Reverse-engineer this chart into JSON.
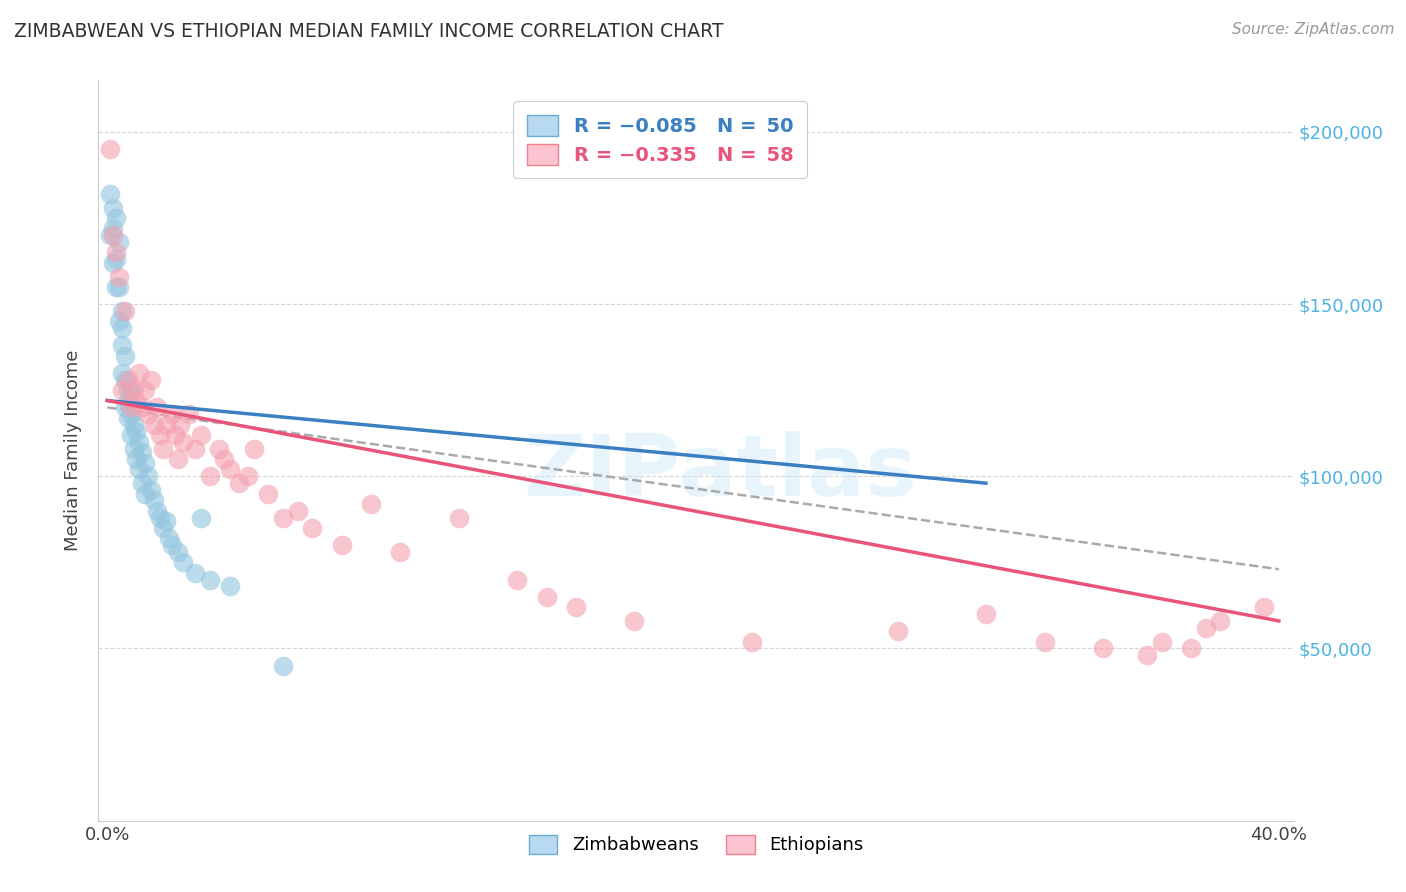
{
  "title": "ZIMBABWEAN VS ETHIOPIAN MEDIAN FAMILY INCOME CORRELATION CHART",
  "source": "Source: ZipAtlas.com",
  "ylabel": "Median Family Income",
  "y_ticks": [
    50000,
    100000,
    150000,
    200000
  ],
  "y_tick_labels": [
    "$50,000",
    "$100,000",
    "$150,000",
    "$200,000"
  ],
  "y_min": 0,
  "y_max": 215000,
  "x_min": -0.003,
  "x_max": 0.405,
  "zim_color": "#92c5de",
  "eth_color": "#f4a0b0",
  "trend_zim_color": "#3a7fc1",
  "trend_eth_color": "#e8547a",
  "trend_ci_color": "#aaaaaa",
  "background_color": "#ffffff",
  "grid_color": "#cccccc",
  "zim_x": [
    0.001,
    0.001,
    0.002,
    0.002,
    0.002,
    0.003,
    0.003,
    0.003,
    0.004,
    0.004,
    0.004,
    0.005,
    0.005,
    0.005,
    0.005,
    0.006,
    0.006,
    0.006,
    0.007,
    0.007,
    0.007,
    0.008,
    0.008,
    0.008,
    0.009,
    0.009,
    0.01,
    0.01,
    0.011,
    0.011,
    0.012,
    0.012,
    0.013,
    0.013,
    0.014,
    0.015,
    0.016,
    0.017,
    0.018,
    0.019,
    0.02,
    0.021,
    0.022,
    0.024,
    0.026,
    0.03,
    0.032,
    0.035,
    0.042,
    0.06
  ],
  "zim_y": [
    170000,
    182000,
    178000,
    162000,
    172000,
    175000,
    163000,
    155000,
    168000,
    145000,
    155000,
    138000,
    148000,
    130000,
    143000,
    128000,
    120000,
    135000,
    125000,
    117000,
    122000,
    118000,
    112000,
    125000,
    115000,
    108000,
    113000,
    105000,
    110000,
    102000,
    107000,
    98000,
    104000,
    95000,
    100000,
    96000,
    93000,
    90000,
    88000,
    85000,
    87000,
    82000,
    80000,
    78000,
    75000,
    72000,
    88000,
    70000,
    68000,
    45000
  ],
  "eth_x": [
    0.001,
    0.002,
    0.003,
    0.004,
    0.005,
    0.006,
    0.007,
    0.008,
    0.009,
    0.01,
    0.011,
    0.012,
    0.013,
    0.014,
    0.015,
    0.016,
    0.017,
    0.018,
    0.019,
    0.02,
    0.022,
    0.023,
    0.024,
    0.025,
    0.026,
    0.028,
    0.03,
    0.032,
    0.035,
    0.038,
    0.04,
    0.042,
    0.045,
    0.048,
    0.05,
    0.055,
    0.06,
    0.065,
    0.07,
    0.08,
    0.09,
    0.1,
    0.12,
    0.14,
    0.15,
    0.16,
    0.18,
    0.22,
    0.27,
    0.3,
    0.32,
    0.34,
    0.355,
    0.36,
    0.37,
    0.375,
    0.38,
    0.395
  ],
  "eth_y": [
    195000,
    170000,
    165000,
    158000,
    125000,
    148000,
    128000,
    120000,
    125000,
    122000,
    130000,
    120000,
    125000,
    118000,
    128000,
    115000,
    120000,
    112000,
    108000,
    115000,
    118000,
    112000,
    105000,
    115000,
    110000,
    118000,
    108000,
    112000,
    100000,
    108000,
    105000,
    102000,
    98000,
    100000,
    108000,
    95000,
    88000,
    90000,
    85000,
    80000,
    92000,
    78000,
    88000,
    70000,
    65000,
    62000,
    58000,
    52000,
    55000,
    60000,
    52000,
    50000,
    48000,
    52000,
    50000,
    56000,
    58000,
    62000
  ],
  "trend_zim_x0": 0.0,
  "trend_zim_x1": 0.3,
  "trend_zim_y0": 122000,
  "trend_zim_y1": 98000,
  "trend_eth_x0": 0.0,
  "trend_eth_x1": 0.4,
  "trend_eth_y0": 122000,
  "trend_eth_y1": 58000,
  "trend_ci_x0": 0.0,
  "trend_ci_x1": 0.4,
  "trend_ci_y0": 120000,
  "trend_ci_y1": 73000
}
